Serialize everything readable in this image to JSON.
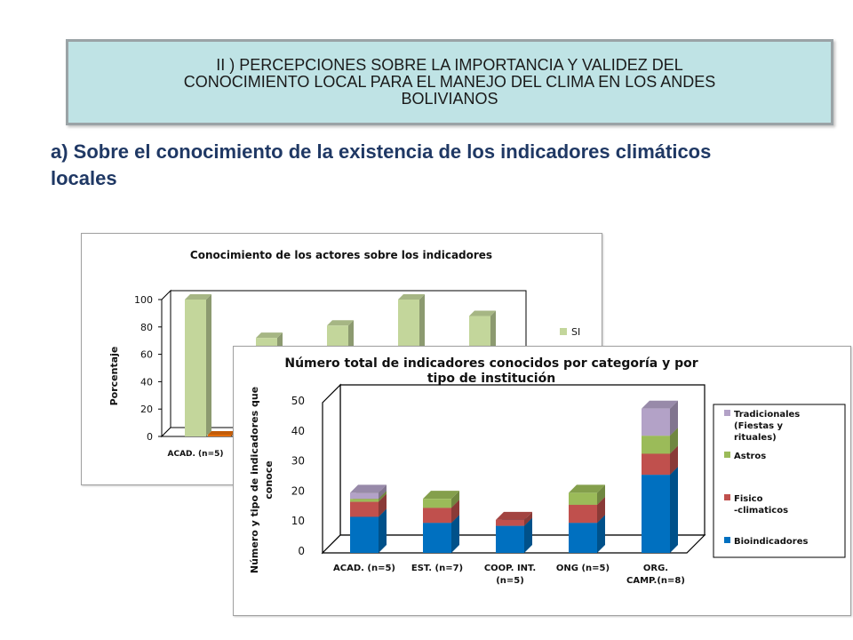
{
  "banner": {
    "text": "II ) PERCEPCIONES SOBRE LA IMPORTANCIA Y VALIDEZ DEL\nCONOCIMIENTO LOCAL  PARA EL MANEJO DEL CLIMA EN LOS ANDES\nBOLIVIANOS",
    "background": "#bfe3e5"
  },
  "subtitle": "a) Sobre el conocimiento de la existencia de los indicadores climáticos locales",
  "chart_data": [
    {
      "type": "bar",
      "title": "Conocimiento de los actores sobre los indicadores",
      "ylabel": "Porcentaje",
      "ylim": [
        0,
        100
      ],
      "yticks": [
        "0",
        "20",
        "40",
        "60",
        "80",
        "100"
      ],
      "categories": [
        "ACAD. (n=5)",
        "",
        "",
        "",
        ""
      ],
      "series": [
        {
          "name": "SI",
          "color": "#c3d69b",
          "values": [
            100,
            72,
            81,
            100,
            88
          ]
        },
        {
          "name": "",
          "color": "#e46c0a",
          "values": [
            0,
            0,
            0,
            0,
            0
          ]
        }
      ],
      "legend": "right",
      "grid": false
    },
    {
      "type": "bar",
      "stacked": true,
      "title": "Número total de indicadores conocidos por categoría y por tipo de institución",
      "ylabel": "Número y tipo de indicadores que conoce",
      "ylim": [
        0,
        50
      ],
      "yticks": [
        "0",
        "10",
        "20",
        "30",
        "40",
        "50"
      ],
      "categories": [
        "ACAD. (n=5)",
        "EST. (n=7)",
        "COOP. INT. (n=5)",
        "ONG (n=5)",
        "ORG. CAMP.(n=8)"
      ],
      "series": [
        {
          "name": "Bioindicadores",
          "color": "#0070c0",
          "values": [
            12,
            10,
            9,
            10,
            26
          ]
        },
        {
          "name": "Fisico -climaticos",
          "color": "#c0504d",
          "values": [
            5,
            5,
            2,
            6,
            7
          ]
        },
        {
          "name": "Astros",
          "color": "#9bbb59",
          "values": [
            1,
            3,
            0,
            4,
            6
          ]
        },
        {
          "name": "Tradicionales (Fiestas y rituales)",
          "color": "#b3a2c7",
          "values": [
            2,
            0,
            0,
            0,
            9
          ]
        }
      ],
      "legend": "right",
      "grid": false
    }
  ]
}
